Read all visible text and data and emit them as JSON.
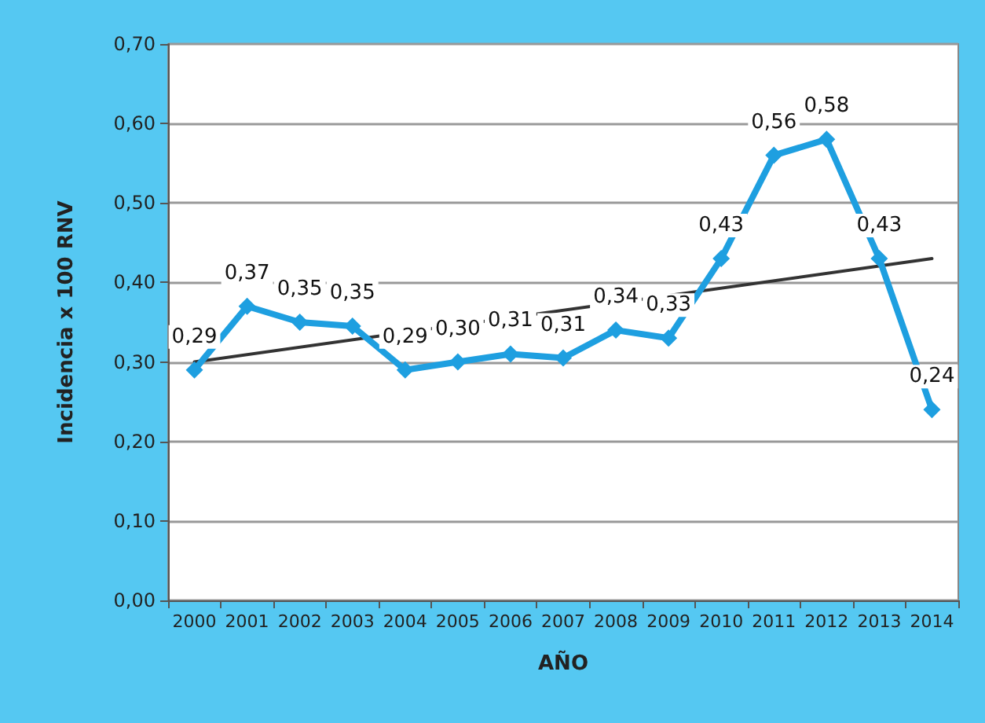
{
  "chart_data": {
    "type": "line",
    "xlabel": "AÑO",
    "ylabel": "Incidencia x 100 RNV",
    "categories": [
      "2000",
      "2001",
      "2002",
      "2003",
      "2004",
      "2005",
      "2006",
      "2007",
      "2008",
      "2009",
      "2010",
      "2011",
      "2012",
      "2013",
      "2014"
    ],
    "series": [
      {
        "color": "#1e9fe0",
        "values": [
          0.29,
          0.37,
          0.35,
          0.345,
          0.29,
          0.3,
          0.31,
          0.305,
          0.34,
          0.33,
          0.43,
          0.56,
          0.58,
          0.43,
          0.24
        ],
        "value_labels": [
          "0,29",
          "0,37",
          "0,35",
          "0,35",
          "0,29",
          "0,30",
          "0,31",
          "0,31",
          "0,34",
          "0,33",
          "0,43",
          "0,56",
          "0,58",
          "0,43",
          "0,24"
        ],
        "marker": "diamond"
      },
      {
        "type": "line",
        "color": "#333333",
        "values": [
          0.3,
          null,
          null,
          null,
          null,
          null,
          null,
          null,
          null,
          null,
          null,
          null,
          null,
          null,
          0.43
        ],
        "marker": "none"
      }
    ],
    "ylim": [
      0,
      0.7
    ],
    "yticks": [
      {
        "value": 0,
        "label": "0,00"
      },
      {
        "value": 0.1,
        "label": "0,10"
      },
      {
        "value": 0.2,
        "label": "0,20"
      },
      {
        "value": 0.3,
        "label": "0,30"
      },
      {
        "value": 0.4,
        "label": "0,40"
      },
      {
        "value": 0.5,
        "label": "0,50"
      },
      {
        "value": 0.6,
        "label": "0,60"
      },
      {
        "value": 0.7,
        "label": "0,70"
      }
    ],
    "grid": "y"
  }
}
